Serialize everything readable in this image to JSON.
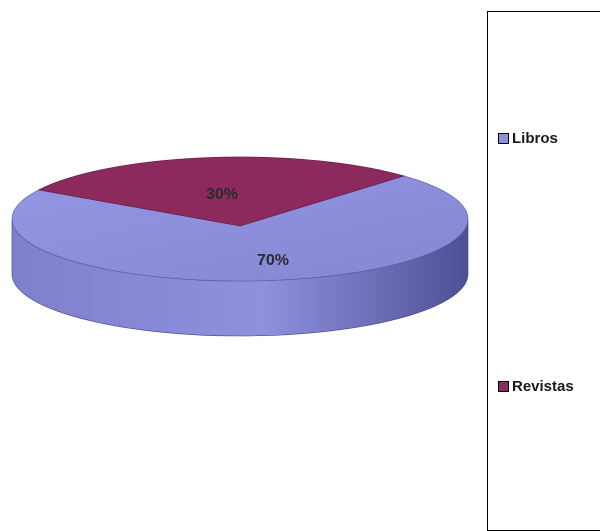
{
  "chart_data": {
    "type": "pie",
    "title": "",
    "three_d": true,
    "slices": [
      {
        "label": "Libros",
        "value": 70,
        "data_label": "70%",
        "color": "#8d8fdc"
      },
      {
        "label": "Revistas",
        "value": 30,
        "data_label": "30%",
        "color": "#8c2a5d"
      }
    ],
    "legend": {
      "position": "right",
      "items": [
        {
          "label": "Libros",
          "color": "#8d8fdc"
        },
        {
          "label": "Revistas",
          "color": "#8c2a5d"
        }
      ]
    },
    "colors": {
      "libros_side": "#6466b3",
      "revistas_side": "#6b1f46"
    }
  }
}
